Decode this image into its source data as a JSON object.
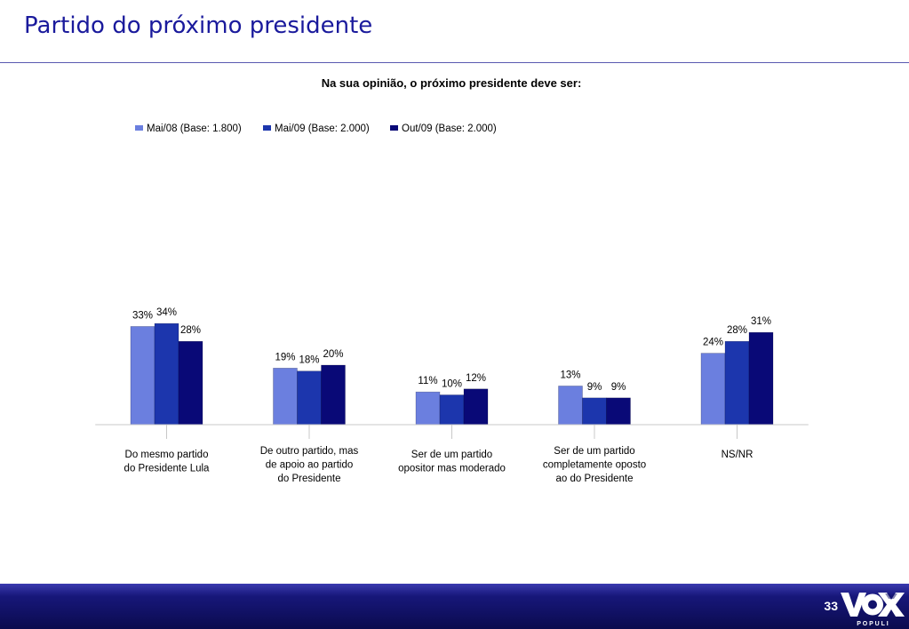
{
  "slide": {
    "title": "Partido do próximo presidente",
    "page_number": "33"
  },
  "logo": {
    "text": "VOX",
    "subtext": "P O P U L I"
  },
  "colors": {
    "title": "#1a1a9c",
    "footer": "#12126a",
    "series": [
      "#6b7fdf",
      "#1c36ad",
      "#090977"
    ]
  },
  "chart_data": {
    "type": "bar",
    "title": "Na sua opinião, o próximo presidente deve ser:",
    "categories": [
      [
        "Do mesmo partido",
        "do Presidente Lula"
      ],
      [
        "De outro partido, mas",
        "de apoio ao partido",
        "do Presidente"
      ],
      [
        "Ser de um partido",
        "opositor mas moderado"
      ],
      [
        "Ser de um partido",
        "completamente oposto",
        "ao do Presidente"
      ],
      [
        "NS/NR"
      ]
    ],
    "series": [
      {
        "name": "Mai/08 (Base: 1.800)",
        "values": [
          33,
          19,
          11,
          13,
          24
        ]
      },
      {
        "name": "Mai/09 (Base: 2.000)",
        "values": [
          34,
          18,
          10,
          9,
          28
        ]
      },
      {
        "name": "Out/09 (Base: 2.000)",
        "values": [
          28,
          20,
          12,
          9,
          31
        ]
      }
    ],
    "value_suffix": "%",
    "ylim": [
      0,
      34
    ],
    "grid": false,
    "legend": "top",
    "xlabel": "",
    "ylabel": ""
  }
}
